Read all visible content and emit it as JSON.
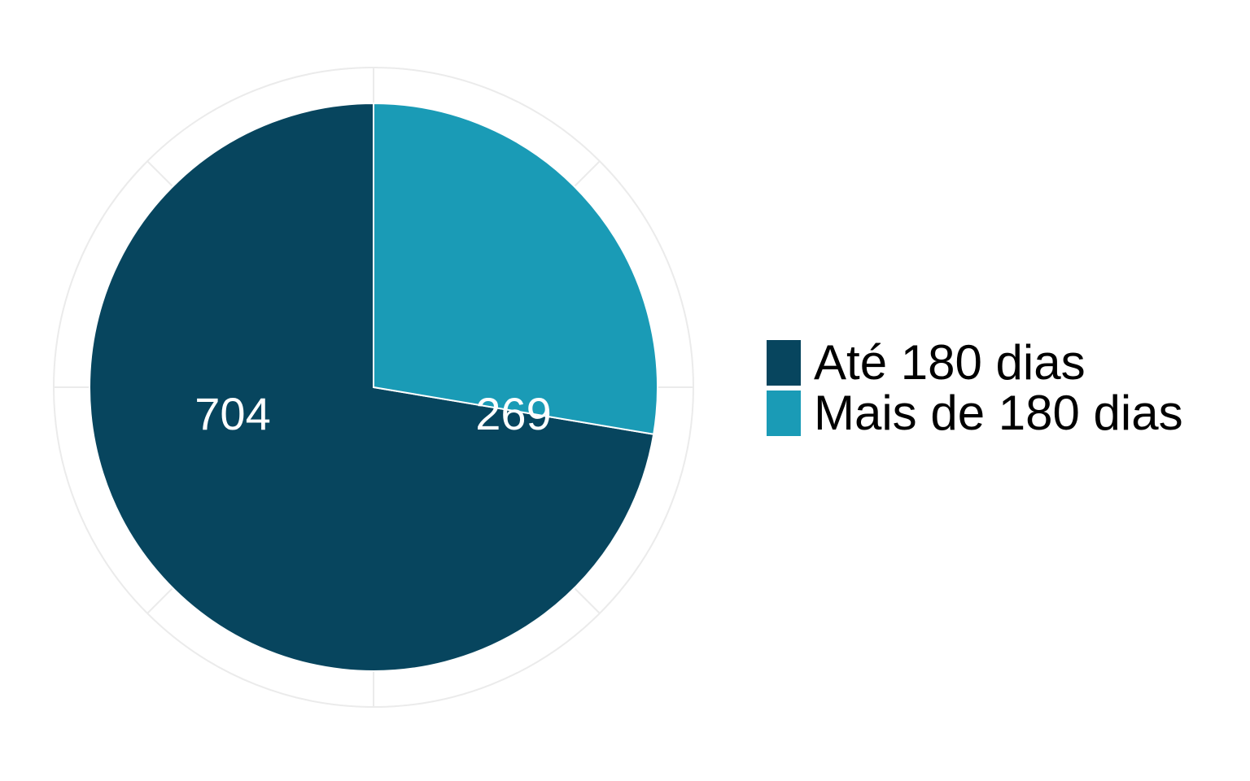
{
  "chart_data": {
    "type": "pie",
    "categories": [
      "Até 180 dias",
      "Mais de 180 dias"
    ],
    "values": [
      704,
      269
    ],
    "data_labels": [
      "704",
      "269"
    ],
    "colors": [
      "#07455e",
      "#1a9bb6"
    ],
    "legend_position": "right",
    "grid": true,
    "start_angle": "12 o'clock",
    "direction": "counterclockwise from second slice (first slice drawn counterclockwise from top)"
  },
  "legend": {
    "items": [
      {
        "label": "Até 180 dias",
        "color": "#07455e"
      },
      {
        "label": "Mais de 180 dias",
        "color": "#1a9bb6"
      }
    ]
  }
}
